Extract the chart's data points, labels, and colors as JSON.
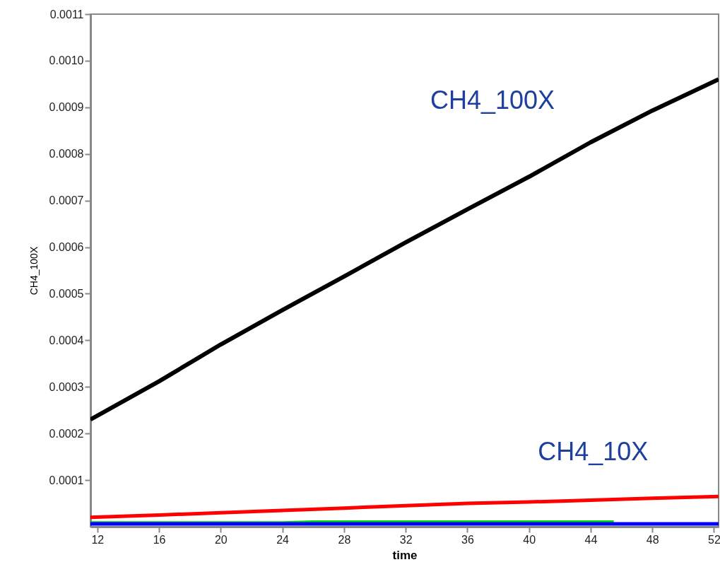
{
  "chart_data": {
    "type": "line",
    "xlabel": "time",
    "ylabel": "CH4_100X",
    "xlim": [
      11.55,
      52.3
    ],
    "xticks": [
      12,
      16,
      20,
      24,
      28,
      32,
      36,
      40,
      44,
      48,
      52
    ],
    "ylim": [
      0,
      0.0011
    ],
    "yticks": [
      {
        "value": 0.0001,
        "label": "0.0001"
      },
      {
        "value": 0.0002,
        "label": "0.0002"
      },
      {
        "value": 0.0003,
        "label": "0.0003"
      },
      {
        "value": 0.0004,
        "label": "0.0004"
      },
      {
        "value": 0.0005,
        "label": "0.0005"
      },
      {
        "value": 0.0006,
        "label": "0.0006"
      },
      {
        "value": 0.0007,
        "label": "0.0007"
      },
      {
        "value": 0.0008,
        "label": "0.0008"
      },
      {
        "value": 0.0009,
        "label": "0.0009"
      },
      {
        "value": 0.001,
        "label": "0.0010"
      },
      {
        "value": 0.0011,
        "label": "0.0011"
      }
    ],
    "grid": false,
    "marker": "none",
    "line_style": "solid",
    "series": [
      {
        "color": "#000000",
        "x": [
          11.55,
          16,
          20,
          24,
          28,
          32,
          36,
          40,
          44,
          48,
          52.3
        ],
        "values": [
          0.00023,
          0.000312,
          0.000391,
          0.000465,
          0.000537,
          0.00061,
          0.000681,
          0.000751,
          0.000825,
          0.000893,
          0.00096
        ]
      },
      {
        "color": "#ff0000",
        "x": [
          11.55,
          16,
          20,
          24,
          28,
          32,
          36,
          40,
          44,
          48,
          52.3
        ],
        "values": [
          2e-05,
          2.5e-05,
          3e-05,
          3.5e-05,
          4e-05,
          4.5e-05,
          5e-05,
          5.3e-05,
          5.7e-05,
          6.1e-05,
          6.5e-05
        ]
      },
      {
        "color": "#00dd00",
        "x": [
          11.55,
          24,
          26,
          45.5
        ],
        "values": [
          8e-06,
          8e-06,
          1e-05,
          1e-05
        ]
      },
      {
        "color": "#0000ff",
        "x": [
          11.55,
          52.3
        ],
        "values": [
          6e-06,
          6e-06
        ]
      }
    ],
    "annotations": [
      "CH4_100X",
      "CH4_10X"
    ]
  }
}
